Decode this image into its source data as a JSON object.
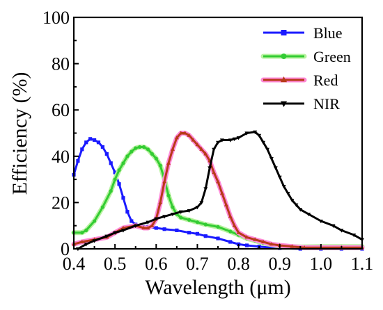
{
  "chart_data": {
    "type": "line",
    "xlabel": "Wavelength (μm)",
    "ylabel": "Efficiency (%)",
    "xlim": [
      0.4,
      1.1
    ],
    "ylim": [
      0,
      100
    ],
    "x_ticks": [
      "0.4",
      "0.5",
      "0.6",
      "0.7",
      "0.8",
      "0.9",
      "1.0",
      "1.1"
    ],
    "y_ticks": [
      "0",
      "20",
      "40",
      "60",
      "80",
      "100"
    ],
    "grid": false,
    "legend_position": "top-right",
    "series": [
      {
        "name": "Blue",
        "color": "#1a1aff",
        "glow": "",
        "marker": "square",
        "points": [
          [
            0.4,
            32
          ],
          [
            0.41,
            38
          ],
          [
            0.42,
            43
          ],
          [
            0.43,
            46
          ],
          [
            0.44,
            47.5
          ],
          [
            0.45,
            47
          ],
          [
            0.46,
            46
          ],
          [
            0.47,
            44
          ],
          [
            0.48,
            41
          ],
          [
            0.49,
            37
          ],
          [
            0.5,
            33
          ],
          [
            0.51,
            28
          ],
          [
            0.52,
            22
          ],
          [
            0.53,
            16
          ],
          [
            0.54,
            12
          ],
          [
            0.55,
            10.5
          ],
          [
            0.56,
            10
          ],
          [
            0.58,
            9.5
          ],
          [
            0.6,
            9
          ],
          [
            0.62,
            8.5
          ],
          [
            0.65,
            8
          ],
          [
            0.68,
            7
          ],
          [
            0.7,
            6.5
          ],
          [
            0.72,
            5.5
          ],
          [
            0.75,
            4.5
          ],
          [
            0.78,
            3
          ],
          [
            0.8,
            2
          ],
          [
            0.82,
            1.5
          ],
          [
            0.85,
            1
          ],
          [
            0.88,
            0.5
          ],
          [
            0.9,
            0.3
          ],
          [
            0.95,
            0
          ],
          [
            1.0,
            0
          ],
          [
            1.05,
            0
          ],
          [
            1.1,
            0
          ]
        ]
      },
      {
        "name": "Green",
        "color": "#33cc33",
        "glow": "#b8f2a0",
        "marker": "circle",
        "points": [
          [
            0.4,
            7
          ],
          [
            0.42,
            7
          ],
          [
            0.43,
            8
          ],
          [
            0.45,
            12
          ],
          [
            0.47,
            18
          ],
          [
            0.49,
            25
          ],
          [
            0.5,
            30
          ],
          [
            0.51,
            34
          ],
          [
            0.52,
            37
          ],
          [
            0.53,
            40
          ],
          [
            0.54,
            42
          ],
          [
            0.55,
            43.5
          ],
          [
            0.56,
            44
          ],
          [
            0.57,
            44
          ],
          [
            0.58,
            43
          ],
          [
            0.59,
            41
          ],
          [
            0.6,
            39
          ],
          [
            0.61,
            36
          ],
          [
            0.62,
            30
          ],
          [
            0.63,
            23
          ],
          [
            0.64,
            18
          ],
          [
            0.65,
            15
          ],
          [
            0.66,
            13.5
          ],
          [
            0.68,
            12.5
          ],
          [
            0.7,
            11.5
          ],
          [
            0.72,
            10.5
          ],
          [
            0.75,
            9.5
          ],
          [
            0.78,
            7.5
          ],
          [
            0.8,
            6
          ],
          [
            0.82,
            4.5
          ],
          [
            0.84,
            3.5
          ],
          [
            0.86,
            2.5
          ],
          [
            0.88,
            1.8
          ],
          [
            0.9,
            1.2
          ],
          [
            0.95,
            0.8
          ],
          [
            1.0,
            1
          ],
          [
            1.05,
            1
          ],
          [
            1.1,
            1
          ]
        ]
      },
      {
        "name": "Red",
        "color": "#b83a1a",
        "glow": "#ff8ad8",
        "marker": "triangle-up",
        "points": [
          [
            0.4,
            2
          ],
          [
            0.42,
            3
          ],
          [
            0.45,
            4
          ],
          [
            0.48,
            5
          ],
          [
            0.5,
            7
          ],
          [
            0.52,
            9
          ],
          [
            0.55,
            10
          ],
          [
            0.57,
            9
          ],
          [
            0.58,
            9
          ],
          [
            0.59,
            10
          ],
          [
            0.6,
            13
          ],
          [
            0.61,
            20
          ],
          [
            0.62,
            29
          ],
          [
            0.63,
            37
          ],
          [
            0.64,
            43
          ],
          [
            0.65,
            48
          ],
          [
            0.66,
            50
          ],
          [
            0.67,
            50
          ],
          [
            0.68,
            49
          ],
          [
            0.69,
            47
          ],
          [
            0.7,
            45
          ],
          [
            0.71,
            43
          ],
          [
            0.72,
            41
          ],
          [
            0.73,
            38
          ],
          [
            0.74,
            33
          ],
          [
            0.75,
            29
          ],
          [
            0.76,
            24
          ],
          [
            0.77,
            19
          ],
          [
            0.78,
            14
          ],
          [
            0.79,
            10
          ],
          [
            0.8,
            7
          ],
          [
            0.82,
            5
          ],
          [
            0.84,
            4
          ],
          [
            0.86,
            3
          ],
          [
            0.88,
            2
          ],
          [
            0.9,
            1.5
          ],
          [
            0.93,
            1
          ],
          [
            0.96,
            0.5
          ],
          [
            1.0,
            0.5
          ],
          [
            1.05,
            0.5
          ],
          [
            1.1,
            0.5
          ]
        ]
      },
      {
        "name": "NIR",
        "color": "#000000",
        "glow": "",
        "marker": "triangle-down",
        "points": [
          [
            0.41,
            0
          ],
          [
            0.43,
            2
          ],
          [
            0.45,
            3.5
          ],
          [
            0.48,
            5.5
          ],
          [
            0.5,
            7
          ],
          [
            0.52,
            8
          ],
          [
            0.55,
            10
          ],
          [
            0.58,
            11.5
          ],
          [
            0.6,
            13
          ],
          [
            0.62,
            14
          ],
          [
            0.64,
            15
          ],
          [
            0.66,
            16
          ],
          [
            0.68,
            16.5
          ],
          [
            0.7,
            18
          ],
          [
            0.71,
            20
          ],
          [
            0.72,
            26
          ],
          [
            0.73,
            35
          ],
          [
            0.74,
            43
          ],
          [
            0.75,
            46
          ],
          [
            0.76,
            47
          ],
          [
            0.78,
            47
          ],
          [
            0.79,
            47.5
          ],
          [
            0.8,
            48
          ],
          [
            0.82,
            50
          ],
          [
            0.84,
            50.5
          ],
          [
            0.85,
            49
          ],
          [
            0.86,
            46
          ],
          [
            0.87,
            43
          ],
          [
            0.88,
            39
          ],
          [
            0.89,
            35
          ],
          [
            0.9,
            31
          ],
          [
            0.91,
            27
          ],
          [
            0.92,
            24
          ],
          [
            0.93,
            21
          ],
          [
            0.94,
            19
          ],
          [
            0.95,
            17
          ],
          [
            0.97,
            15
          ],
          [
            1.0,
            12
          ],
          [
            1.03,
            10
          ],
          [
            1.05,
            8
          ],
          [
            1.08,
            6
          ],
          [
            1.1,
            4
          ]
        ]
      }
    ]
  }
}
